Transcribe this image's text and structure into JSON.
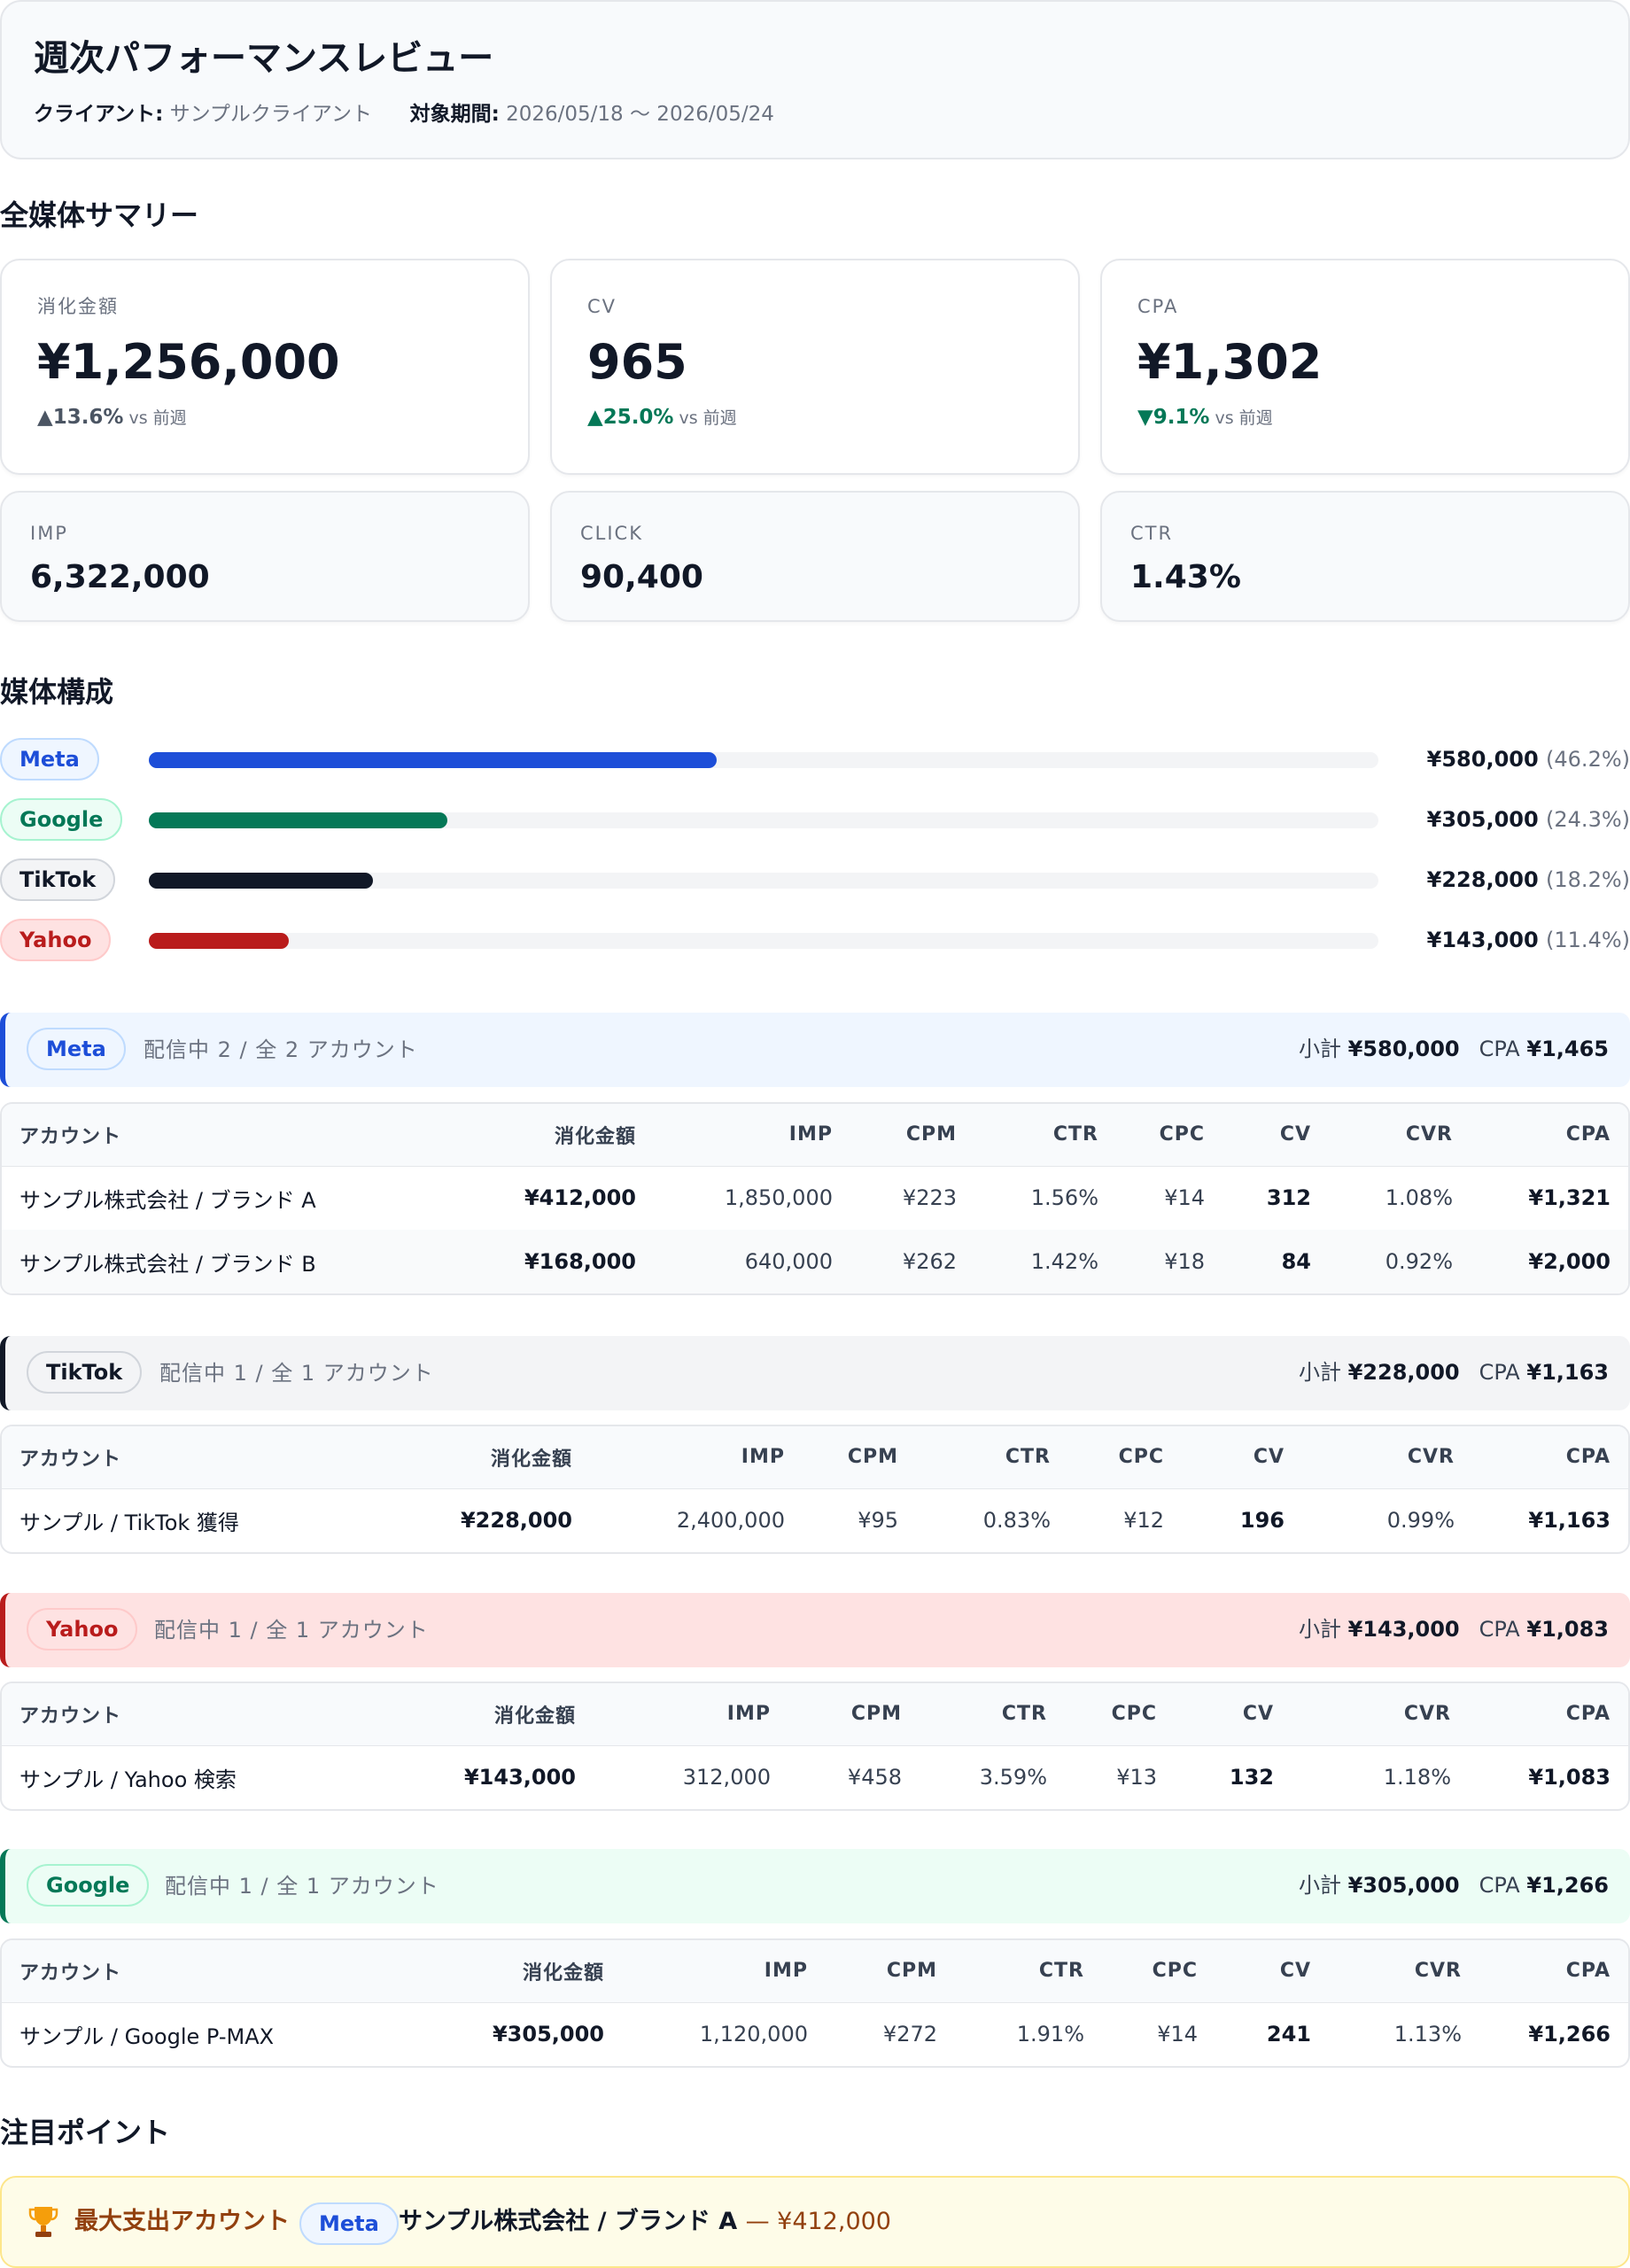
{
  "header": {
    "title": "週次パフォーマンスレビュー",
    "client_label": "クライアント:",
    "client_value": "サンプルクライアント",
    "period_label": "対象期間:",
    "period_value": "2026/05/18 〜 2026/05/24"
  },
  "summary": {
    "title": "全媒体サマリー",
    "vs_label": "vs 前週",
    "main_kpis": [
      {
        "label": "消化金額",
        "value": "¥1,256,000",
        "delta": "▲13.6%"
      },
      {
        "label": "CV",
        "value": "965",
        "delta": "▲25.0%"
      },
      {
        "label": "CPA",
        "value": "¥1,302",
        "delta": "▼9.1%"
      }
    ],
    "sub_kpis": [
      {
        "label": "IMP",
        "value": "6,322,000"
      },
      {
        "label": "CLICK",
        "value": "90,400"
      },
      {
        "label": "CTR",
        "value": "1.43%"
      }
    ]
  },
  "mix": {
    "title": "媒体構成",
    "items": [
      {
        "media": "Meta",
        "amount": "¥580,000",
        "pct_label": "(46.2%)",
        "share": 46.2,
        "color": "#1d4ed8"
      },
      {
        "media": "Google",
        "amount": "¥305,000",
        "pct_label": "(24.3%)",
        "share": 24.3,
        "color": "#047857"
      },
      {
        "media": "TikTok",
        "amount": "¥228,000",
        "pct_label": "(18.2%)",
        "share": 18.2,
        "color": "#111827"
      },
      {
        "media": "Yahoo",
        "amount": "¥143,000",
        "pct_label": "(11.4%)",
        "share": 11.4,
        "color": "#b91c1c"
      }
    ]
  },
  "columns": [
    "アカウント",
    "消化金額",
    "IMP",
    "CPM",
    "CTR",
    "CPC",
    "CV",
    "CVR",
    "CPA"
  ],
  "subtotal_label": "小計",
  "cpa_label": "CPA",
  "media_sections": [
    {
      "media": "Meta",
      "count_text": "配信中 2 / 全 2 アカウント",
      "subtotal": "¥580,000",
      "cpa": "¥1,465",
      "rows": [
        [
          "サンプル株式会社 / ブランド A",
          "¥412,000",
          "1,850,000",
          "¥223",
          "1.56%",
          "¥14",
          "312",
          "1.08%",
          "¥1,321"
        ],
        [
          "サンプル株式会社 / ブランド B",
          "¥168,000",
          "640,000",
          "¥262",
          "1.42%",
          "¥18",
          "84",
          "0.92%",
          "¥2,000"
        ]
      ]
    },
    {
      "media": "TikTok",
      "count_text": "配信中 1 / 全 1 アカウント",
      "subtotal": "¥228,000",
      "cpa": "¥1,163",
      "rows": [
        [
          "サンプル / TikTok 獲得",
          "¥228,000",
          "2,400,000",
          "¥95",
          "0.83%",
          "¥12",
          "196",
          "0.99%",
          "¥1,163"
        ]
      ]
    },
    {
      "media": "Yahoo",
      "count_text": "配信中 1 / 全 1 アカウント",
      "subtotal": "¥143,000",
      "cpa": "¥1,083",
      "rows": [
        [
          "サンプル / Yahoo 検索",
          "¥143,000",
          "312,000",
          "¥458",
          "3.59%",
          "¥13",
          "132",
          "1.18%",
          "¥1,083"
        ]
      ]
    },
    {
      "media": "Google",
      "count_text": "配信中 1 / 全 1 アカウント",
      "subtotal": "¥305,000",
      "cpa": "¥1,266",
      "rows": [
        [
          "サンプル / Google P-MAX",
          "¥305,000",
          "1,120,000",
          "¥272",
          "1.91%",
          "¥14",
          "241",
          "1.13%",
          "¥1,266"
        ]
      ]
    }
  ],
  "highlights": {
    "title": "注目ポイント",
    "icon": "trophy-icon",
    "label": "最大支出アカウント",
    "media": "Meta",
    "account": "サンプル株式会社 / ブランド A",
    "amount": "— ¥412,000"
  }
}
